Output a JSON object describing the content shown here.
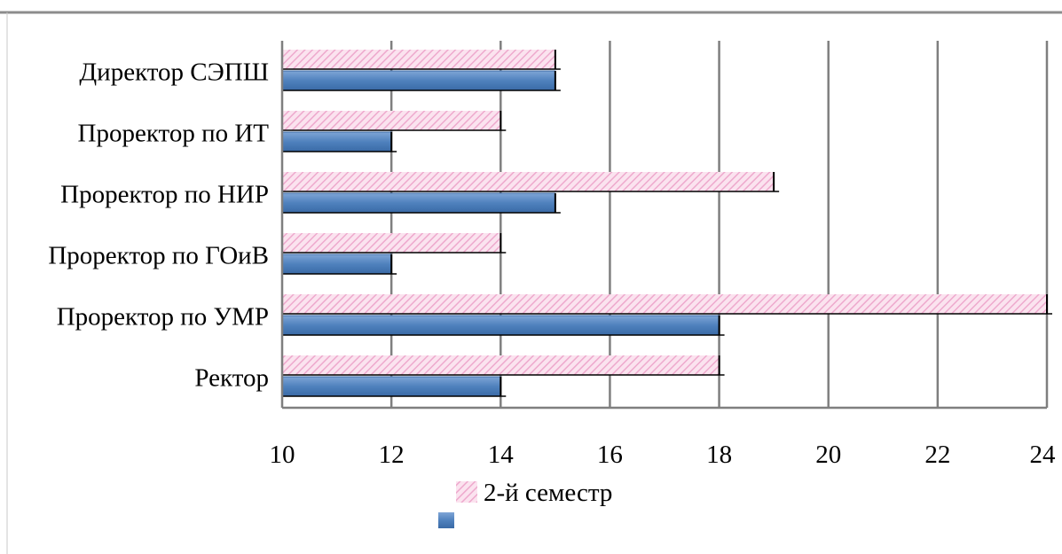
{
  "chart_data": {
    "type": "bar",
    "orientation": "horizontal",
    "categories": [
      "Ректор",
      "Проректор по УМР",
      "Проректор по ГОиВ",
      "Проректор по НИР",
      "Проректор по ИТ",
      "Директор СЭПШ"
    ],
    "series": [
      {
        "name": "2-й семестр",
        "values": [
          18,
          24,
          14,
          19,
          14,
          15
        ],
        "color": "#f2b8d6",
        "pattern": "diagonal-hatch"
      },
      {
        "name": "",
        "values": [
          14,
          18,
          12,
          15,
          12,
          15
        ],
        "color": "#4f81bd",
        "pattern": "solid-gradient"
      }
    ],
    "xlim": [
      10,
      24
    ],
    "xticks": [
      10,
      12,
      14,
      16,
      18,
      20,
      22,
      24
    ],
    "grid": true,
    "legend_position": "bottom",
    "title": "",
    "xlabel": "",
    "ylabel": ""
  },
  "colors": {
    "frame": "#8c8c8c",
    "grid": "#7f7f7f",
    "pink": "#f2b8d6",
    "blue": "#4f81bd"
  }
}
